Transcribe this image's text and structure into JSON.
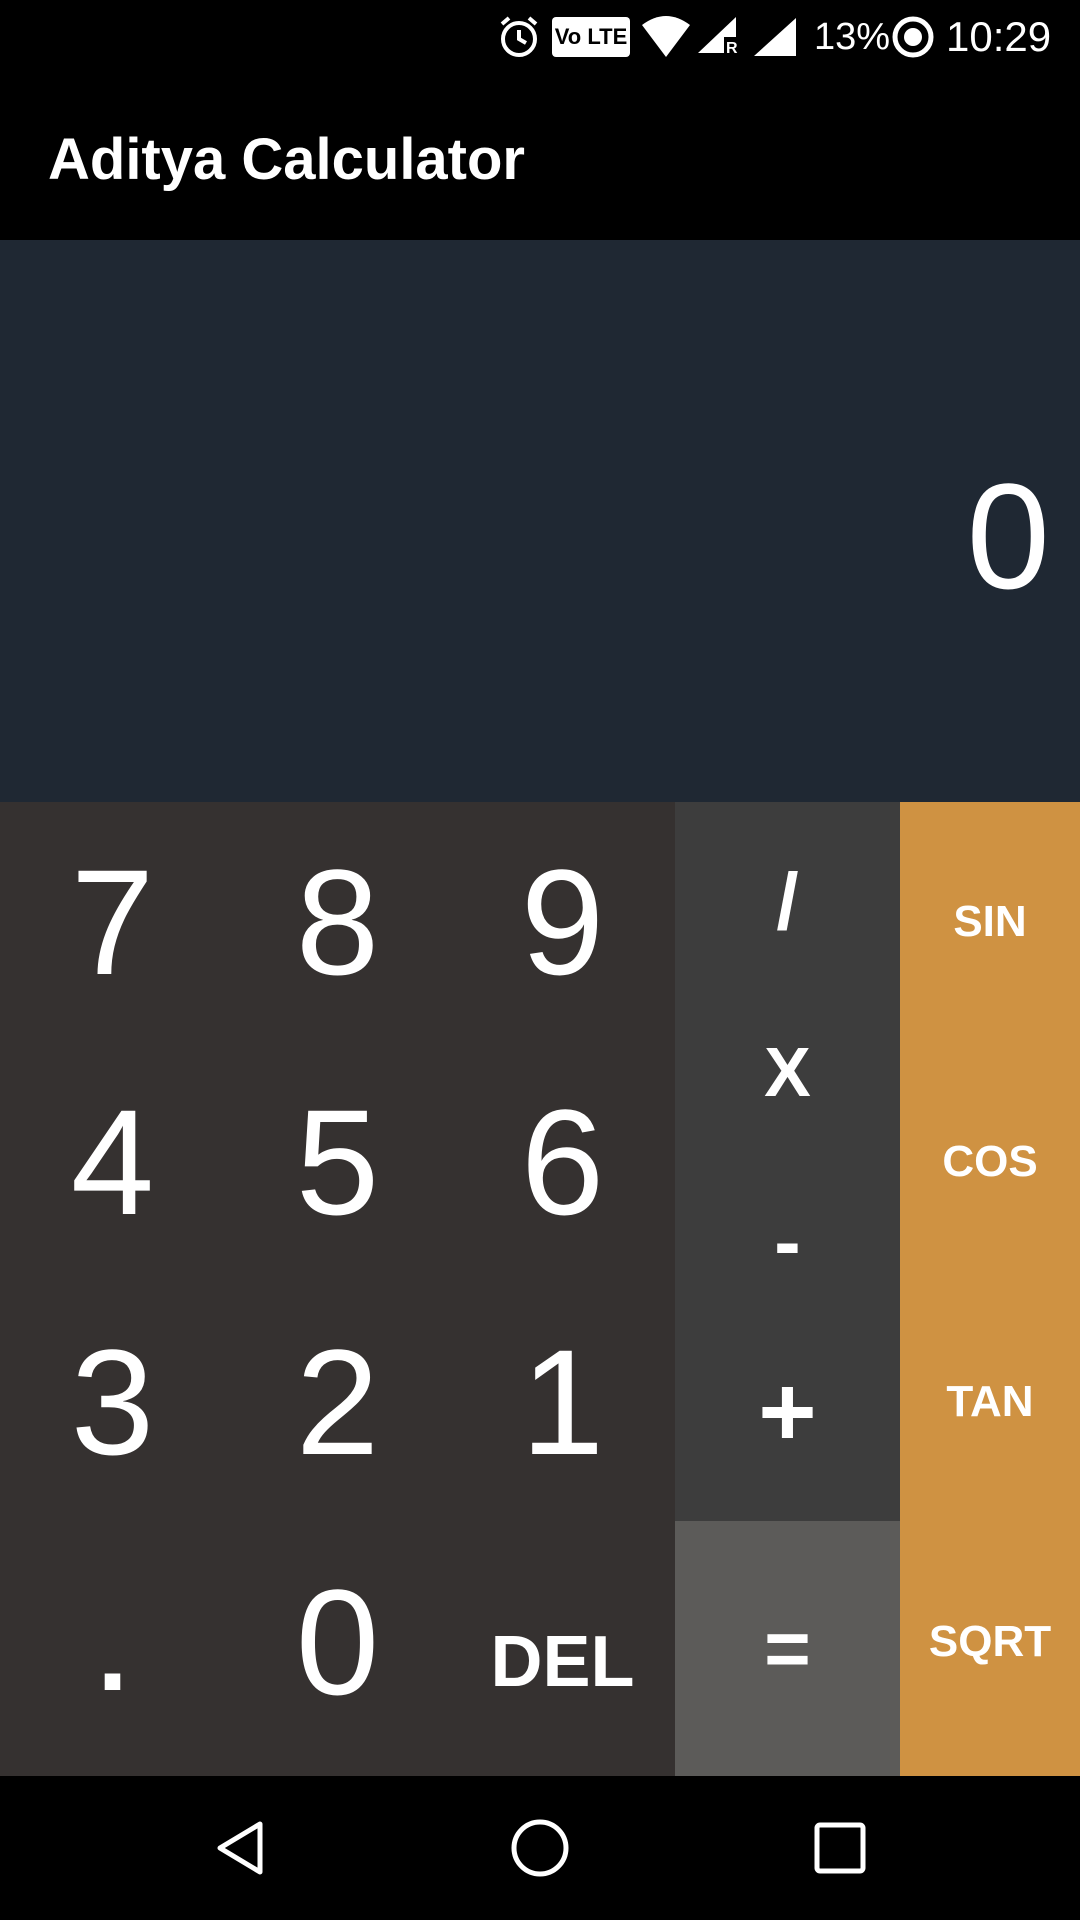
{
  "status_bar": {
    "battery": "13%",
    "time": "10:29",
    "volte": "Vo LTE",
    "roaming": "R",
    "icons": [
      "alarm-icon",
      "volte-icon",
      "wifi-icon",
      "signal-roaming-icon",
      "signal-icon",
      "battery-saver-icon"
    ]
  },
  "app": {
    "title": "Aditya Calculator"
  },
  "display": {
    "value": "0"
  },
  "keypad": {
    "digits": {
      "k7": "7",
      "k8": "8",
      "k9": "9",
      "k4": "4",
      "k5": "5",
      "k6": "6",
      "k3": "3",
      "k2": "2",
      "k1": "1",
      "dot": ".",
      "k0": "0",
      "del": "DEL"
    },
    "operators": {
      "divide": "/",
      "multiply": "X",
      "subtract": "-",
      "add": "+",
      "equals": "="
    },
    "functions": {
      "sin": "SIN",
      "cos": "COS",
      "tan": "TAN",
      "sqrt": "SQRT"
    }
  },
  "nav_bar": {
    "icons": [
      "back-icon",
      "home-icon",
      "recents-icon"
    ]
  },
  "colors": {
    "display_bg": "#1f2833",
    "numpad_bg": "#353130",
    "ops_bg": "#3d3d3d",
    "equals_bg": "#5c5b59",
    "function_bg": "#cf9242"
  }
}
